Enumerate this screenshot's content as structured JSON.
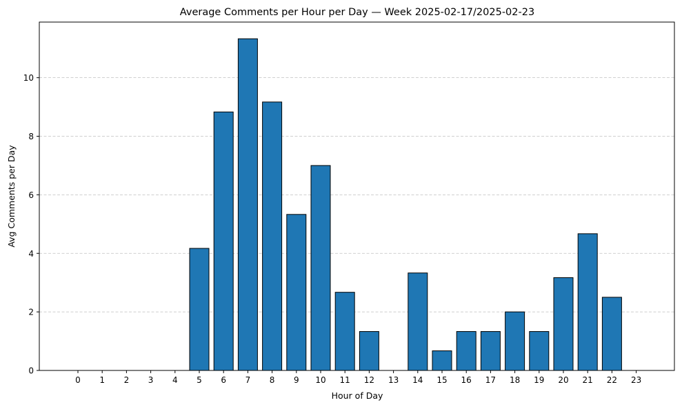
{
  "chart_data": {
    "type": "bar",
    "title": "Average Comments per Hour per Day — Week 2025-02-17/2025-02-23",
    "xlabel": "Hour of Day",
    "ylabel": "Avg Comments per Day",
    "categories": [
      "0",
      "1",
      "2",
      "3",
      "4",
      "5",
      "6",
      "7",
      "8",
      "9",
      "10",
      "11",
      "12",
      "13",
      "14",
      "15",
      "16",
      "17",
      "18",
      "19",
      "20",
      "21",
      "22",
      "23"
    ],
    "values": [
      0,
      0,
      0,
      0,
      0,
      4.17,
      8.83,
      11.33,
      9.17,
      5.33,
      7.0,
      2.67,
      1.33,
      0,
      3.33,
      0.67,
      1.33,
      1.33,
      2.0,
      1.33,
      3.17,
      4.67,
      2.5,
      0
    ],
    "ylim": [
      0,
      11.9
    ],
    "yticks": [
      "0",
      "2",
      "4",
      "6",
      "8",
      "10"
    ],
    "grid": "y dashed",
    "bar_color": "#1f77b4",
    "edge_color": "#000000",
    "grid_color": "#b0b0b0"
  }
}
